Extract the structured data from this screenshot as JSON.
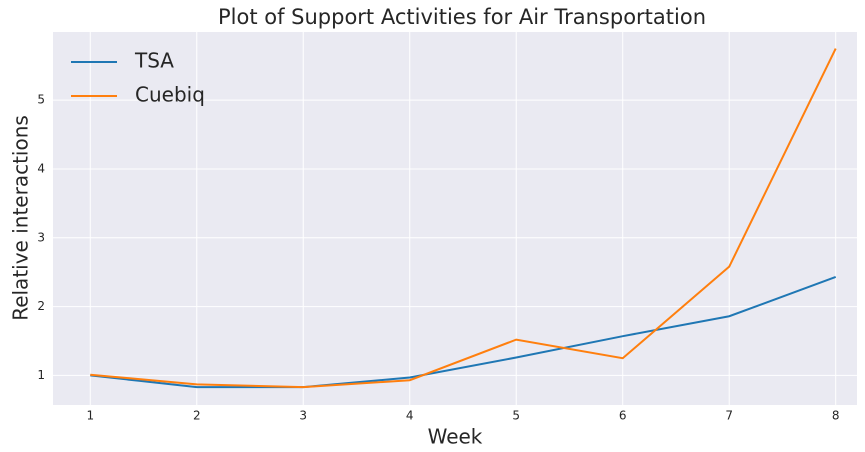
{
  "chart_data": {
    "type": "line",
    "title": "Plot of Support Activities for Air Transportation",
    "xlabel": "Week",
    "ylabel": "Relative interactions",
    "x": [
      1,
      2,
      3,
      4,
      5,
      6,
      7,
      8
    ],
    "series": [
      {
        "name": "TSA",
        "color": "#1f77b4",
        "values": [
          1.0,
          0.83,
          0.83,
          0.97,
          1.26,
          1.57,
          1.86,
          2.43
        ]
      },
      {
        "name": "Cuebiq",
        "color": "#ff7f0e",
        "values": [
          1.01,
          0.87,
          0.83,
          0.93,
          1.52,
          1.25,
          2.58,
          5.75
        ]
      }
    ],
    "xlim": [
      0.65,
      8.2
    ],
    "xticks": [
      1,
      2,
      3,
      4,
      5,
      6,
      7,
      8
    ],
    "ylim": [
      0.57,
      5.99
    ],
    "yticks": [
      1,
      2,
      3,
      4,
      5
    ],
    "grid": true,
    "legend": "upper left"
  }
}
